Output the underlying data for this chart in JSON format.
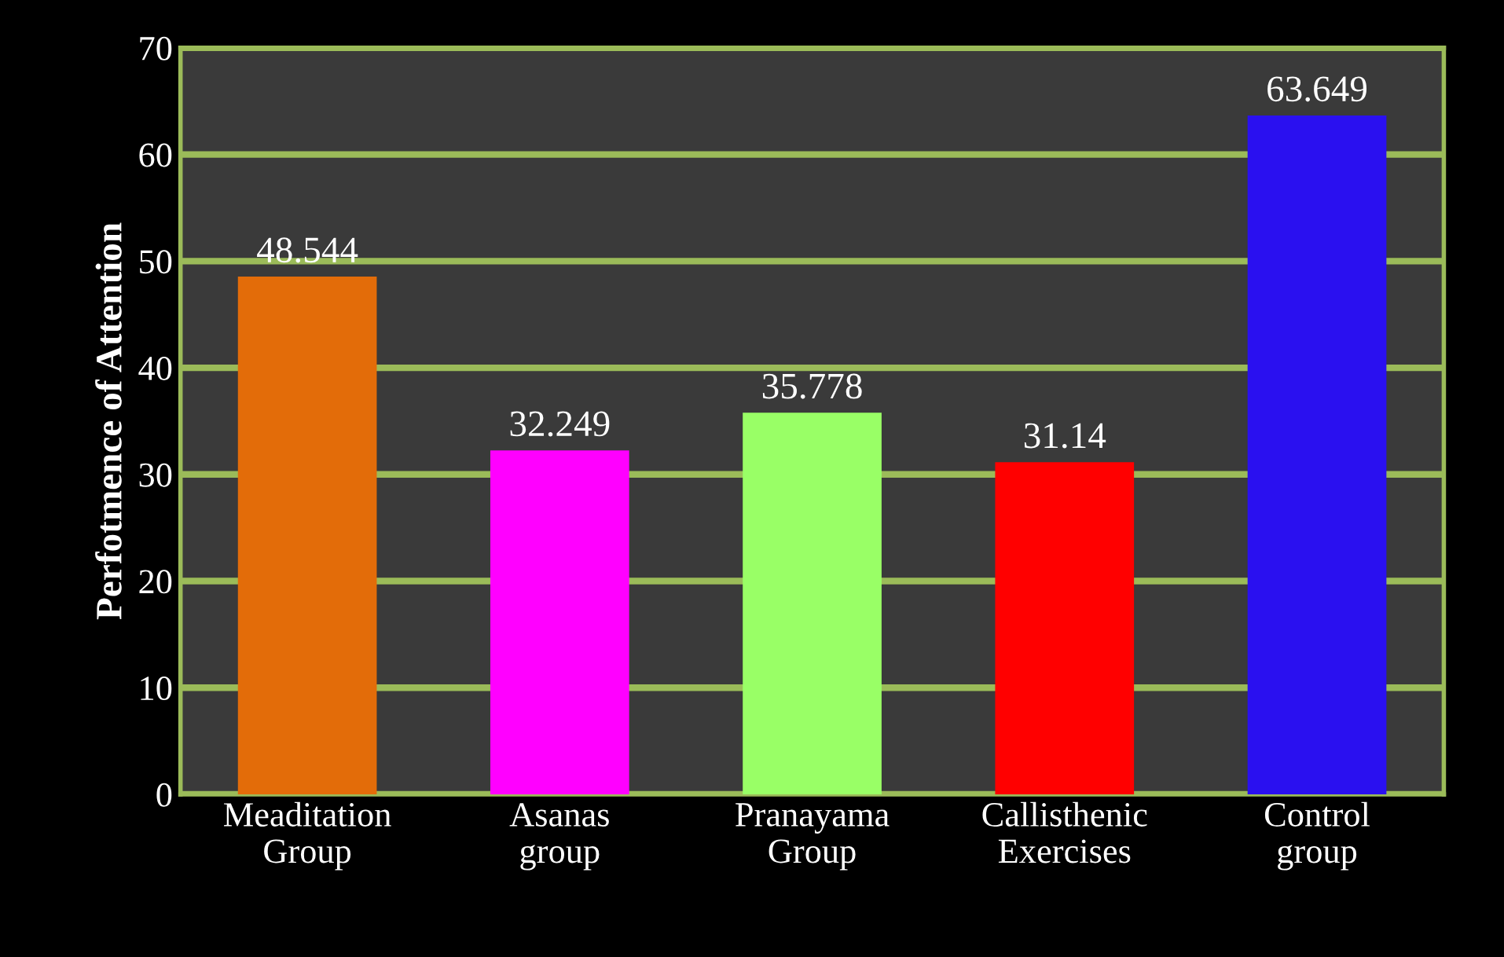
{
  "chart_data": {
    "type": "bar",
    "ylabel": "Perfotmence of Attention",
    "categories": [
      "Meaditation\nGroup",
      "Asanas\ngroup",
      "Pranayama\nGroup",
      "Callisthenic\nExercises",
      "Control\ngroup"
    ],
    "values": [
      48.544,
      32.249,
      35.778,
      31.14,
      63.649
    ],
    "colors": [
      "#e36c09",
      "#ff00ff",
      "#99ff66",
      "#ff0000",
      "#2a10f0"
    ],
    "value_labels": [
      "48.544",
      "32.249",
      "35.778",
      "31.14",
      "63.649"
    ],
    "ylim": [
      0,
      70
    ],
    "yticks": [
      0,
      10,
      20,
      30,
      40,
      50,
      60,
      70
    ],
    "grid": "y"
  }
}
